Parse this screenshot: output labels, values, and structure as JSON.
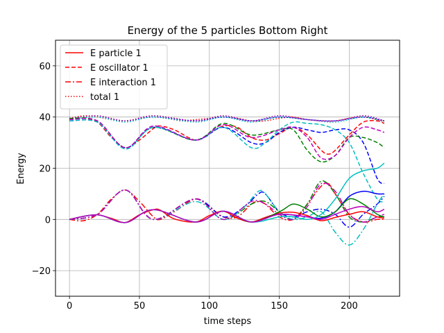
{
  "chart_data": {
    "type": "line",
    "title": "Energy of the 5 particles Bottom Right",
    "xlabel": "time steps",
    "ylabel": "Energy",
    "xlim": [
      -10,
      236
    ],
    "ylim": [
      -30,
      70
    ],
    "xticks": [
      0,
      50,
      100,
      150,
      200
    ],
    "yticks": [
      -20,
      0,
      20,
      40,
      60
    ],
    "grid": true,
    "legend_placement": "top-left",
    "legend": [
      {
        "label": "E particle 1",
        "style": "solid",
        "color": "#ff0000"
      },
      {
        "label": "E oscillator 1",
        "style": "dashed",
        "color": "#ff0000"
      },
      {
        "label": "E interaction 1",
        "style": "dashdot",
        "color": "#ff0000"
      },
      {
        "label": "total 1",
        "style": "dotted",
        "color": "#ff0000"
      }
    ],
    "series": [
      {
        "name": "E particle 1",
        "particle": 1,
        "color": "#ff0000",
        "style": "solid",
        "x": [
          0,
          10,
          20,
          30,
          40,
          50,
          60,
          65,
          75,
          90,
          100,
          110,
          120,
          130,
          140,
          150,
          160,
          170,
          180,
          190,
          200,
          210,
          220,
          225
        ],
        "y": [
          0,
          1.2,
          1.8,
          0.4,
          -1.2,
          1.8,
          3.8,
          3.6,
          0.2,
          -1,
          1.5,
          3.2,
          0.5,
          -1,
          0.8,
          2.5,
          2.8,
          1.5,
          -0.5,
          0.8,
          2,
          3,
          1,
          0.5
        ]
      },
      {
        "name": "E oscillator 1",
        "particle": 1,
        "color": "#ff0000",
        "style": "dashed",
        "x": [
          0,
          10,
          20,
          30,
          40,
          50,
          60,
          65,
          75,
          90,
          100,
          110,
          120,
          130,
          140,
          150,
          160,
          170,
          180,
          185,
          190,
          200,
          210,
          220,
          225
        ],
        "y": [
          39,
          39.5,
          38,
          32,
          28,
          31,
          35.5,
          36.5,
          35,
          31,
          33.5,
          36.5,
          36,
          32,
          31,
          33.5,
          36,
          33,
          27,
          25.5,
          27,
          33,
          38,
          38.5,
          37.5
        ]
      },
      {
        "name": "E interaction 1",
        "particle": 1,
        "color": "#ff0000",
        "style": "dashdot",
        "x": [
          0,
          10,
          20,
          30,
          40,
          50,
          60,
          65,
          75,
          90,
          100,
          110,
          120,
          130,
          135,
          140,
          150,
          160,
          170,
          180,
          185,
          190,
          200,
          210,
          220,
          225
        ],
        "y": [
          0,
          -0.5,
          2,
          8,
          11.5,
          7,
          1,
          0,
          3,
          8,
          5,
          1,
          1,
          6,
          7,
          6,
          1,
          0,
          6,
          13,
          14,
          10,
          2,
          -1,
          0,
          0
        ]
      },
      {
        "name": "total 1",
        "particle": 1,
        "color": "#ff0000",
        "style": "dotted",
        "x": [
          0,
          10,
          20,
          30,
          40,
          50,
          60,
          70,
          80,
          90,
          100,
          110,
          120,
          130,
          140,
          150,
          160,
          170,
          180,
          190,
          200,
          210,
          220,
          225
        ],
        "y": [
          39.5,
          40.5,
          40,
          39,
          38.5,
          39.5,
          40,
          39.5,
          38.5,
          39,
          39.5,
          40,
          39.5,
          38.5,
          38.5,
          39.5,
          40,
          39,
          38.5,
          38.5,
          39.5,
          40,
          39,
          38.5
        ]
      },
      {
        "particle": 2,
        "color": "#0000ff",
        "style": "solid",
        "x": [
          0,
          20,
          40,
          60,
          90,
          110,
          130,
          150,
          170,
          180,
          190,
          200,
          210,
          220,
          225
        ],
        "y": [
          0,
          1.8,
          -1.2,
          3.8,
          -1,
          3.2,
          -1,
          2,
          1,
          0.5,
          3,
          9,
          11,
          10,
          10
        ]
      },
      {
        "particle": 2,
        "color": "#0000ff",
        "style": "dashed",
        "x": [
          0,
          20,
          40,
          60,
          90,
          110,
          130,
          140,
          150,
          160,
          170,
          180,
          190,
          200,
          210,
          220,
          225
        ],
        "y": [
          38.5,
          38,
          28,
          36,
          31,
          36,
          30,
          30,
          34,
          36,
          35,
          34,
          35,
          35,
          30,
          16,
          14
        ]
      },
      {
        "particle": 2,
        "color": "#0000ff",
        "style": "dashdot",
        "x": [
          0,
          20,
          40,
          60,
          90,
          110,
          125,
          135,
          140,
          150,
          160,
          170,
          180,
          190,
          200,
          210,
          220,
          225
        ],
        "y": [
          0,
          2,
          11.5,
          0,
          8,
          1,
          5,
          10,
          10,
          3,
          1,
          3,
          4,
          2,
          -3,
          2,
          6,
          9
        ]
      },
      {
        "particle": 2,
        "color": "#0000ff",
        "style": "dotted",
        "x": [
          0,
          20,
          40,
          60,
          90,
          110,
          130,
          150,
          170,
          190,
          210,
          225
        ],
        "y": [
          39,
          40,
          38.5,
          40,
          38.5,
          40,
          38.5,
          40,
          39,
          38.5,
          40,
          38.5
        ]
      },
      {
        "particle": 3,
        "color": "#008000",
        "style": "solid",
        "x": [
          0,
          20,
          40,
          60,
          90,
          110,
          130,
          150,
          160,
          170,
          180,
          190,
          200,
          210,
          220,
          225
        ],
        "y": [
          0,
          1.8,
          -1.2,
          3.8,
          -1,
          3.2,
          -1,
          3,
          6,
          4,
          1,
          3,
          8,
          6,
          2,
          1
        ]
      },
      {
        "particle": 3,
        "color": "#008000",
        "style": "dashed",
        "x": [
          0,
          20,
          40,
          60,
          90,
          110,
          130,
          150,
          160,
          170,
          180,
          190,
          200,
          210,
          220,
          225
        ],
        "y": [
          39.5,
          38.5,
          28,
          36,
          31,
          37.5,
          33,
          35,
          35,
          27,
          22.5,
          25,
          32,
          32,
          30,
          28
        ]
      },
      {
        "particle": 3,
        "color": "#008000",
        "style": "dashdot",
        "x": [
          0,
          20,
          40,
          60,
          90,
          110,
          130,
          140,
          150,
          160,
          170,
          180,
          190,
          200,
          210,
          220,
          225
        ],
        "y": [
          0,
          2,
          11.5,
          0,
          8,
          0,
          6,
          7,
          3,
          0,
          6,
          15,
          10,
          1,
          -1,
          1,
          1
        ]
      },
      {
        "particle": 3,
        "color": "#008000",
        "style": "dotted",
        "x": [
          0,
          20,
          40,
          60,
          90,
          110,
          130,
          150,
          170,
          190,
          210,
          225
        ],
        "y": [
          39.5,
          40.5,
          38.5,
          40.5,
          38.5,
          40.5,
          38.5,
          40.5,
          39,
          38.5,
          40.5,
          38.5
        ]
      },
      {
        "particle": 4,
        "color": "#00bfbf",
        "style": "solid",
        "x": [
          0,
          20,
          40,
          60,
          90,
          110,
          130,
          150,
          160,
          170,
          180,
          190,
          200,
          210,
          220,
          225
        ],
        "y": [
          0,
          1.8,
          -1.2,
          3.8,
          -1,
          3.2,
          -1,
          1,
          1,
          0,
          2,
          8,
          16,
          19,
          20,
          22
        ]
      },
      {
        "particle": 4,
        "color": "#00bfbf",
        "style": "dashed",
        "x": [
          0,
          20,
          40,
          60,
          90,
          110,
          130,
          140,
          150,
          160,
          170,
          180,
          190,
          200,
          210,
          220,
          225
        ],
        "y": [
          38.5,
          38,
          27.5,
          36,
          31,
          36,
          28,
          30,
          35,
          38,
          37.5,
          37,
          35,
          30,
          18,
          8,
          7
        ]
      },
      {
        "particle": 4,
        "color": "#00bfbf",
        "style": "dashdot",
        "x": [
          0,
          20,
          40,
          60,
          90,
          110,
          125,
          135,
          140,
          150,
          160,
          170,
          180,
          190,
          200,
          210,
          220,
          225
        ],
        "y": [
          0,
          2,
          11.5,
          0,
          7,
          0,
          5,
          11,
          10,
          3,
          0,
          1,
          3,
          -5,
          -10,
          -4,
          6,
          10
        ]
      },
      {
        "particle": 4,
        "color": "#00bfbf",
        "style": "dotted",
        "x": [
          0,
          20,
          40,
          60,
          90,
          110,
          130,
          150,
          170,
          190,
          210,
          225
        ],
        "y": [
          39,
          40,
          38,
          40,
          38,
          40,
          38,
          40,
          39,
          38,
          40,
          38
        ]
      },
      {
        "particle": 5,
        "color": "#bf00bf",
        "style": "solid",
        "x": [
          0,
          20,
          40,
          60,
          90,
          110,
          130,
          150,
          170,
          180,
          190,
          200,
          210,
          220,
          225
        ],
        "y": [
          0,
          1.8,
          -1.2,
          3.8,
          -1,
          3.2,
          -1,
          2,
          1,
          0,
          2,
          4,
          5,
          3,
          4
        ]
      },
      {
        "particle": 5,
        "color": "#bf00bf",
        "style": "dashed",
        "x": [
          0,
          20,
          40,
          60,
          90,
          110,
          130,
          150,
          160,
          170,
          180,
          190,
          200,
          210,
          220,
          225
        ],
        "y": [
          39,
          38.5,
          28,
          36.5,
          31,
          37,
          32,
          35,
          36,
          32,
          24,
          25,
          32,
          36,
          35,
          34
        ]
      },
      {
        "particle": 5,
        "color": "#bf00bf",
        "style": "dashdot",
        "x": [
          0,
          20,
          40,
          60,
          90,
          110,
          130,
          140,
          150,
          160,
          170,
          180,
          190,
          200,
          210,
          220,
          225
        ],
        "y": [
          0,
          2,
          11.5,
          0,
          8,
          0,
          7,
          6,
          2,
          0,
          5,
          14,
          11,
          2,
          -1,
          1,
          2
        ]
      },
      {
        "particle": 5,
        "color": "#bf00bf",
        "style": "dotted",
        "x": [
          0,
          20,
          40,
          60,
          90,
          110,
          130,
          150,
          170,
          190,
          210,
          225
        ],
        "y": [
          39.5,
          40.5,
          38.5,
          40.5,
          38.5,
          40.5,
          38.5,
          40.5,
          39,
          38.5,
          40.5,
          38.5
        ]
      }
    ]
  }
}
